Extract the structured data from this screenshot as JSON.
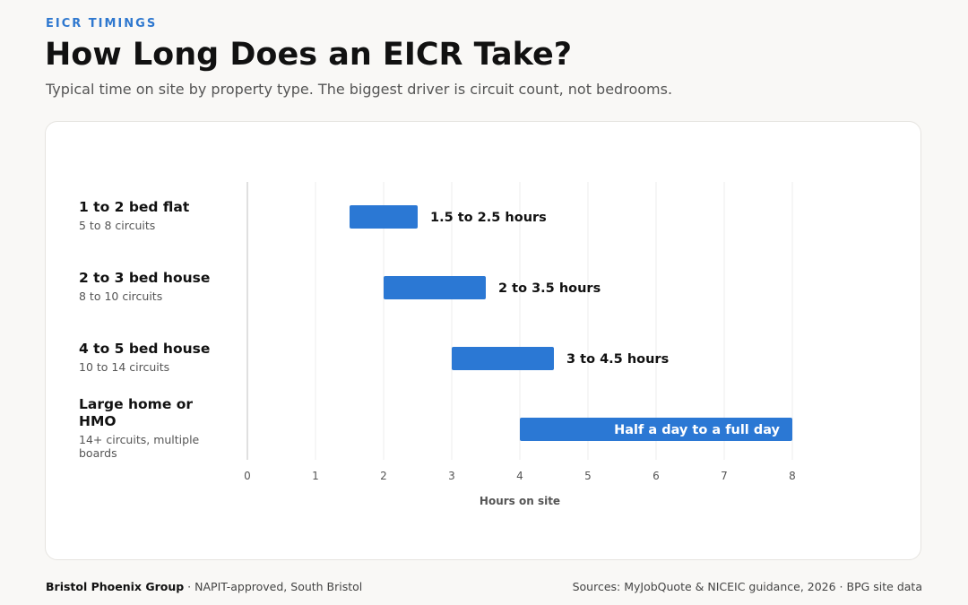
{
  "header": {
    "eyebrow": "EICR TIMINGS",
    "title": "How Long Does an EICR Take?",
    "subtitle": "Typical time on site by property type. The biggest driver is circuit count, not bedrooms."
  },
  "rows": [
    {
      "name": "1 to 2 bed flat",
      "sub": "5 to 8 circuits"
    },
    {
      "name": "2 to 3 bed house",
      "sub": "8 to 10 circuits"
    },
    {
      "name": "4 to 5 bed house",
      "sub": "10 to 14 circuits"
    },
    {
      "name": "Large home or HMO",
      "sub": "14+ circuits, multiple boards"
    }
  ],
  "chart_data": {
    "type": "bar",
    "orientation": "horizontal",
    "bar_style": "range",
    "categories": [
      "1 to 2 bed flat",
      "2 to 3 bed house",
      "4 to 5 bed house",
      "Large home or HMO"
    ],
    "ranges": [
      [
        1.5,
        2.5
      ],
      [
        2,
        3.5
      ],
      [
        3,
        4.5
      ],
      [
        4,
        8
      ]
    ],
    "data_labels": [
      "1.5 to 2.5 hours",
      "2 to 3.5 hours",
      "3 to 4.5 hours",
      "Half a day to a full day"
    ],
    "xlabel": "Hours on site",
    "xlim": [
      0,
      8
    ],
    "xticks": [
      0,
      1,
      2,
      3,
      4,
      5,
      6,
      7,
      8
    ],
    "grid": true,
    "bar_color": "#2b78d4"
  },
  "footer": {
    "org": "Bristol Phoenix Group",
    "org_note": " · NAPIT-approved, South Bristol",
    "sources": "Sources: MyJobQuote & NICEIC guidance, 2026 · BPG site data"
  }
}
